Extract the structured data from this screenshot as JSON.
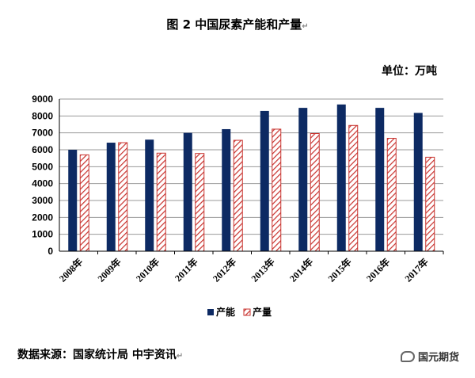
{
  "title": "图 2  中国尿素产能和产量",
  "unit": "单位：万吨",
  "source": "数据来源：国家统计局  中宇资讯",
  "brand": "国元期货",
  "colors": {
    "capacity": "#0d2a63",
    "output": "#c8322e",
    "output_bg": "#ffffff",
    "grid": "#9a9a9a",
    "axis": "#000000"
  },
  "chart_data": {
    "type": "bar",
    "categories": [
      "2008年",
      "2009年",
      "2010年",
      "2011年",
      "2012年",
      "2013年",
      "2014年",
      "2015年",
      "2016年",
      "2017年"
    ],
    "series": [
      {
        "name": "产能",
        "values": [
          6000,
          6420,
          6600,
          7000,
          7220,
          8300,
          8480,
          8680,
          8480,
          8180
        ]
      },
      {
        "name": "产量",
        "values": [
          5700,
          6420,
          5800,
          5780,
          6560,
          7220,
          6960,
          7440,
          6680,
          5560
        ]
      }
    ],
    "ylim": [
      0,
      9000
    ],
    "yticks": [
      0,
      1000,
      2000,
      3000,
      4000,
      5000,
      6000,
      7000,
      8000,
      9000
    ],
    "grid": true,
    "legend": "bottom",
    "xlabel": "",
    "ylabel": ""
  }
}
